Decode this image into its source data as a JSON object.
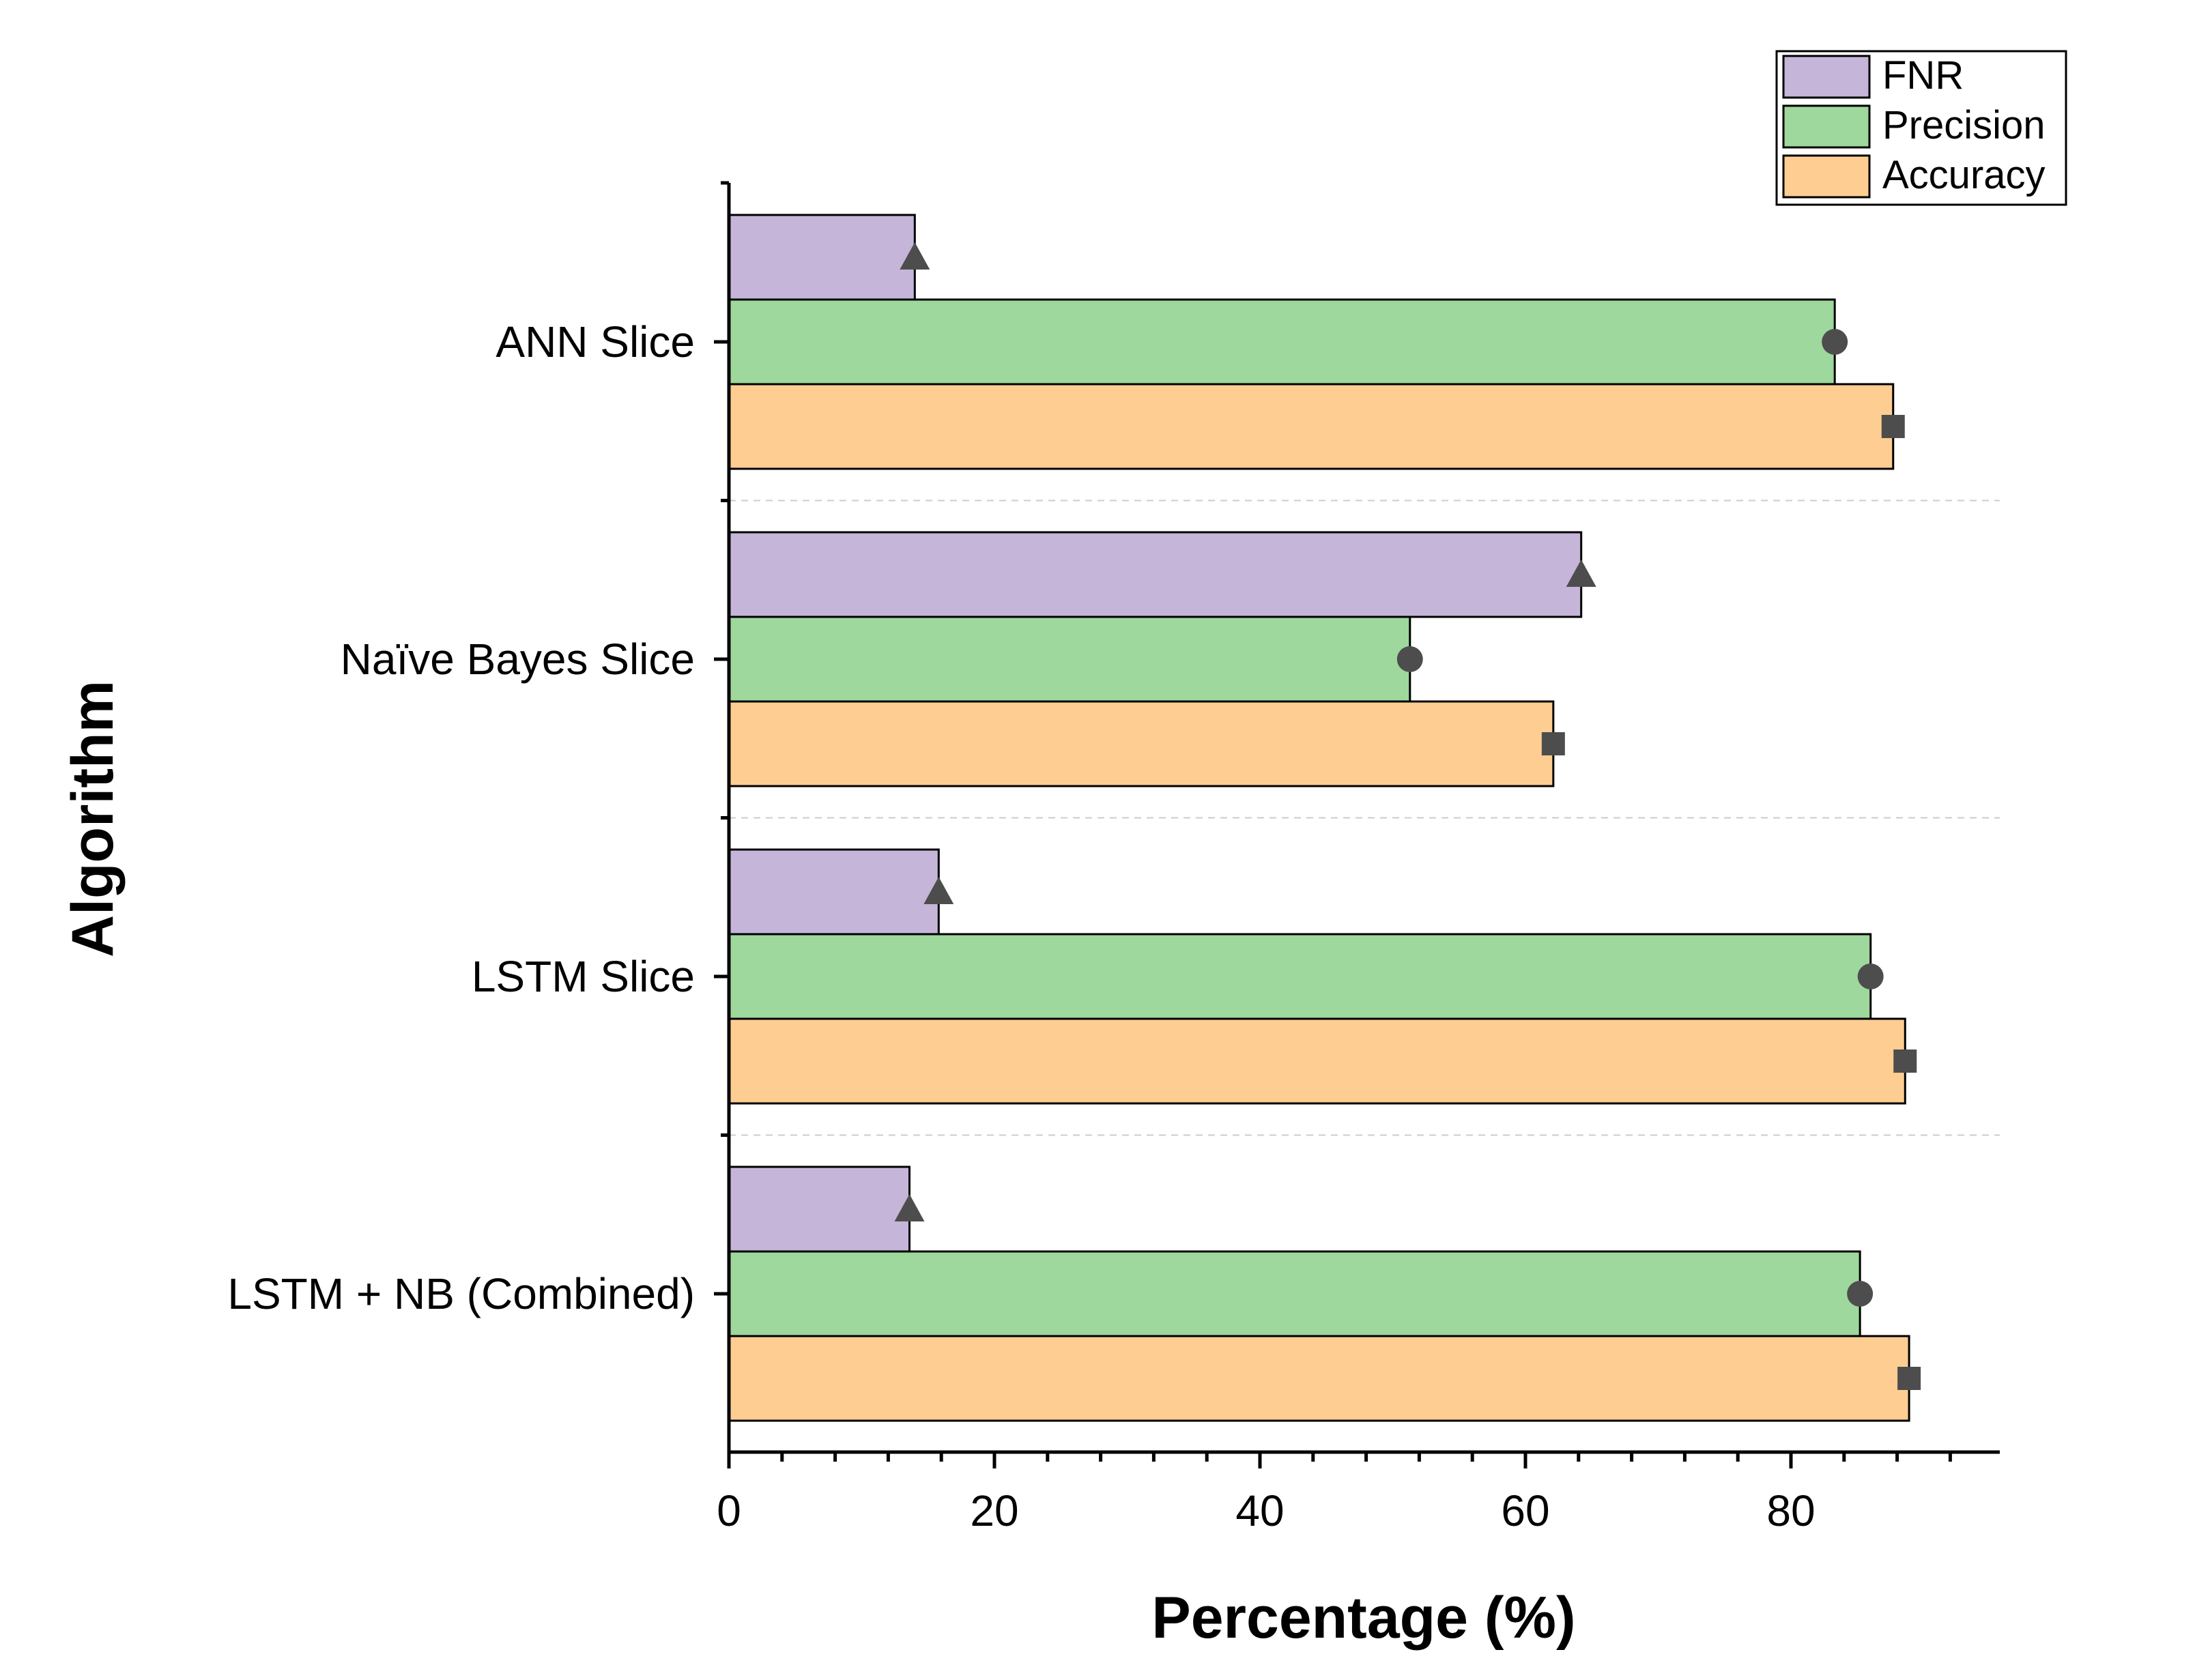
{
  "chart_data": {
    "type": "bar",
    "orientation": "horizontal",
    "title": "",
    "xlabel": "Percentage (%)",
    "ylabel": "Algorithm",
    "xlim": [
      0,
      96
    ],
    "x_ticks": [
      "0",
      "20",
      "40",
      "60",
      "80"
    ],
    "categories": [
      "ANN Slice",
      "Naïve Bayes Slice",
      "LSTM Slice",
      "LSTM + NB (Combined)"
    ],
    "series": [
      {
        "name": "FNR",
        "color": "#c5b5d8",
        "marker": "triangle",
        "values": [
          14.0,
          64.2,
          15.8,
          13.6
        ]
      },
      {
        "name": "Precision",
        "color": "#9ed89c",
        "marker": "circle",
        "values": [
          83.3,
          51.3,
          86.0,
          85.2
        ]
      },
      {
        "name": "Accuracy",
        "color": "#fecd92",
        "marker": "square",
        "values": [
          87.7,
          62.1,
          88.6,
          88.9
        ]
      }
    ],
    "legend_position": "top-right",
    "grid": "dashed separators between categories"
  }
}
